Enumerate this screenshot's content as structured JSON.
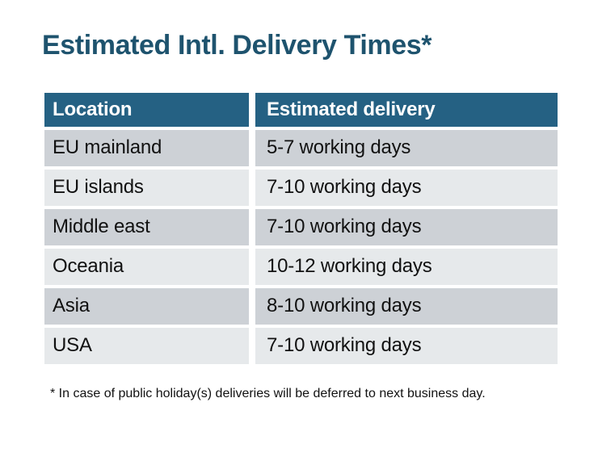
{
  "title": "Estimated Intl. Delivery Times*",
  "footnote": "* In case of public holiday(s) deliveries will be deferred to next business day.",
  "chart_data": {
    "type": "table",
    "title": "Estimated Intl. Delivery Times*",
    "columns": [
      "Location",
      "Estimated delivery"
    ],
    "rows": [
      [
        "EU mainland",
        "5-7 working days"
      ],
      [
        "EU islands",
        "7-10 working days"
      ],
      [
        "Middle east",
        "7-10 working days"
      ],
      [
        "Oceania",
        "10-12 working days"
      ],
      [
        "Asia",
        "8-10 working days"
      ],
      [
        "USA",
        "7-10 working days"
      ]
    ],
    "footnote": "* In case of public holiday(s) deliveries will be deferred to next business day."
  },
  "colors": {
    "title_text": "#1E536E",
    "header_bg": "#256183",
    "header_text": "#FFFFFF",
    "row_odd_bg": "#CDD1D6",
    "row_even_bg": "#E6E9EB",
    "body_text": "#111111"
  }
}
